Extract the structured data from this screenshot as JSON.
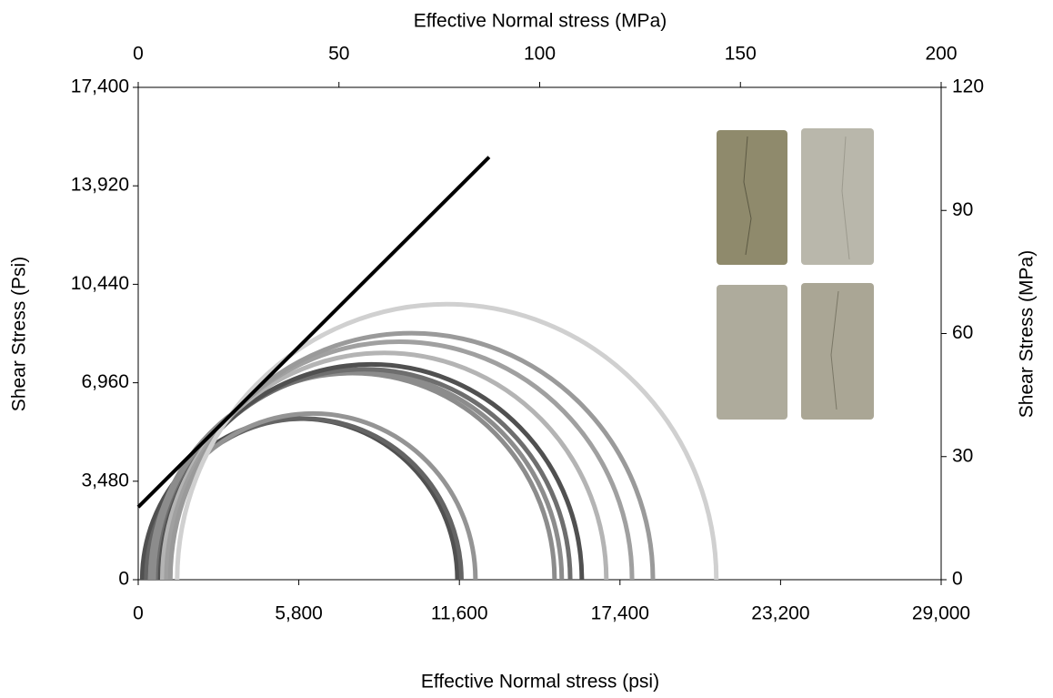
{
  "chart_data": {
    "type": "mohr",
    "x_label": "Effective Normal stress (psi)",
    "x2_label": "Effective Normal stress (MPa)",
    "y_label": "Shear  Stress (Psi)",
    "y2_label": "Shear  Stress (MPa)",
    "xlim": [
      0,
      29000
    ],
    "xticks": [
      0,
      {
        "value": 5800,
        "label": "5,800"
      },
      {
        "value": 11600,
        "label": "11,600"
      },
      {
        "value": 17400,
        "label": "17,400"
      },
      {
        "value": 23200,
        "label": "23,200"
      },
      {
        "value": 29000,
        "label": "29,000"
      }
    ],
    "x2lim": [
      0,
      200
    ],
    "x2ticks": [
      0,
      50,
      100,
      150,
      200
    ],
    "ylim": [
      0,
      17400
    ],
    "yticks": [
      0,
      {
        "value": 3480,
        "label": "3,480"
      },
      {
        "value": 6960,
        "label": "6,960"
      },
      {
        "value": 10440,
        "label": "10,440"
      },
      {
        "value": 13920,
        "label": "13,920"
      },
      {
        "value": 17400,
        "label": "17,400"
      }
    ],
    "y2lim": [
      0,
      120
    ],
    "y2ticks": [
      0,
      30,
      60,
      90,
      120
    ],
    "circles": [
      {
        "x": [
          1,
          79.5
        ],
        "color": "#505050"
      },
      {
        "x": [
          2,
          80.5
        ],
        "color": "#646464"
      },
      {
        "x": [
          3,
          84
        ],
        "color": "#949494"
      },
      {
        "x": [
          3,
          103.7
        ],
        "color": "#8c8c8c"
      },
      {
        "x": [
          4,
          105.5
        ],
        "color": "#8c8c8c"
      },
      {
        "x": [
          5,
          107.6
        ],
        "color": "#6e6e6e"
      },
      {
        "x": [
          5.5,
          110.5
        ],
        "color": "#505050"
      },
      {
        "x": [
          6,
          116.6
        ],
        "color": "#b4b4b4"
      },
      {
        "x": [
          7,
          123
        ],
        "color": "#a0a0a0"
      },
      {
        "x": [
          8,
          128.2
        ],
        "color": "#9a9a9a"
      },
      {
        "x": [
          9.7,
          144
        ],
        "color": "#d0d0d0"
      }
    ],
    "series": [
      {
        "x": [
          0,
          87.4
        ],
        "values": [
          17.7,
          103
        ],
        "color": "#000000",
        "axis": "y2"
      }
    ]
  }
}
